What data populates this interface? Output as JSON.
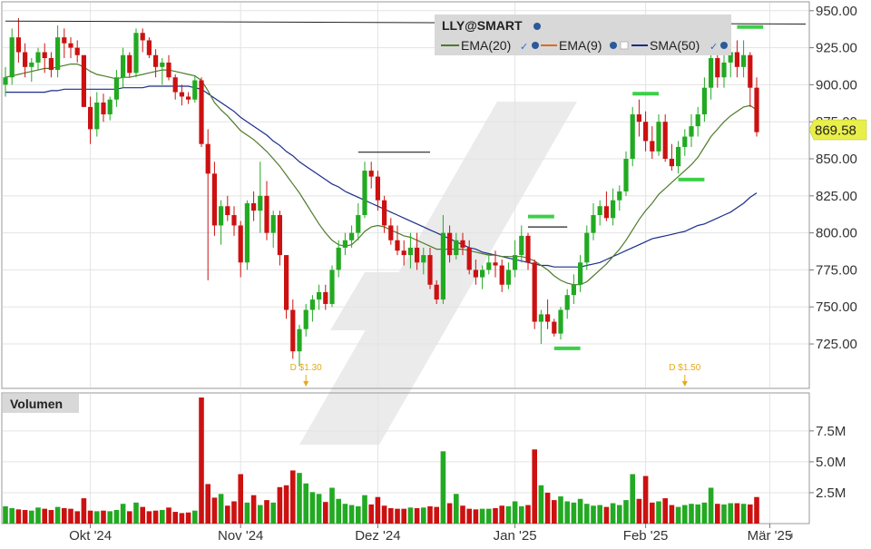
{
  "colors": {
    "up": "#22aa22",
    "down": "#cc1111",
    "ema20": "#4e7a2a",
    "ema9": "#e06a1e",
    "sma50": "#1c2c8a",
    "grid": "#e3e3e3",
    "axis_text": "#333333",
    "last_price_tag": "#e9ef4a",
    "marker_green": "#3ccf4a",
    "dividend": "#e6a817",
    "legend_bg": "#d8d8d8"
  },
  "legend": {
    "symbol": "LLY@SMART",
    "ema20_label": "EMA(20)",
    "ema9_label": "EMA(9)",
    "sma50_label": "SMA(50)"
  },
  "volume_panel": {
    "label": "Volumen"
  },
  "chart_data": {
    "type": "candlestick",
    "price_axis": {
      "ticks": [
        950,
        925,
        900,
        875,
        850,
        825,
        800,
        775,
        750,
        725
      ],
      "tick_labels": [
        "950.00",
        "925.00",
        "900.00",
        "875.00",
        "850.00",
        "825.00",
        "800.00",
        "775.00",
        "750.00",
        "725.00"
      ],
      "range": [
        695,
        956
      ]
    },
    "volume_axis": {
      "ticks": [
        2500000,
        5000000,
        7500000
      ],
      "tick_labels": [
        "2.5M",
        "5.0M",
        "7.5M"
      ],
      "range": [
        0,
        10500000
      ]
    },
    "x_axis": {
      "labels": [
        {
          "label": "Okt '24",
          "index": 13
        },
        {
          "label": "Nov '24",
          "index": 36
        },
        {
          "label": "Dez '24",
          "index": 57
        },
        {
          "label": "Jan '25",
          "index": 78
        },
        {
          "label": "Feb '25",
          "index": 98
        },
        {
          "label": "Mär '25",
          "index": 117
        }
      ]
    },
    "last_price": 869.58,
    "last_price_label": "869.58",
    "ohlc": [
      [
        900,
        912,
        892,
        905
      ],
      [
        905,
        938,
        900,
        932
      ],
      [
        932,
        945,
        915,
        922
      ],
      [
        922,
        928,
        905,
        912
      ],
      [
        912,
        918,
        902,
        915
      ],
      [
        915,
        925,
        910,
        922
      ],
      [
        922,
        928,
        908,
        918
      ],
      [
        918,
        922,
        905,
        910
      ],
      [
        910,
        940,
        905,
        932
      ],
      [
        932,
        938,
        918,
        928
      ],
      [
        928,
        932,
        918,
        925
      ],
      [
        925,
        930,
        915,
        920
      ],
      [
        920,
        920,
        885,
        885
      ],
      [
        885,
        892,
        860,
        870
      ],
      [
        870,
        895,
        865,
        888
      ],
      [
        888,
        894,
        875,
        880
      ],
      [
        880,
        892,
        876,
        890
      ],
      [
        890,
        910,
        885,
        905
      ],
      [
        905,
        925,
        898,
        920
      ],
      [
        920,
        922,
        905,
        908
      ],
      [
        908,
        938,
        905,
        935
      ],
      [
        935,
        938,
        922,
        930
      ],
      [
        930,
        932,
        918,
        920
      ],
      [
        920,
        924,
        905,
        912
      ],
      [
        912,
        918,
        900,
        915
      ],
      [
        915,
        920,
        903,
        905
      ],
      [
        905,
        907,
        890,
        895
      ],
      [
        895,
        900,
        886,
        892
      ],
      [
        892,
        895,
        887,
        890
      ],
      [
        890,
        906,
        888,
        903
      ],
      [
        903,
        905,
        858,
        860
      ],
      [
        860,
        870,
        768,
        840
      ],
      [
        840,
        848,
        798,
        805
      ],
      [
        805,
        822,
        792,
        818
      ],
      [
        818,
        825,
        808,
        812
      ],
      [
        812,
        818,
        798,
        805
      ],
      [
        805,
        808,
        770,
        780
      ],
      [
        780,
        822,
        775,
        820
      ],
      [
        820,
        828,
        808,
        815
      ],
      [
        815,
        848,
        800,
        825
      ],
      [
        825,
        835,
        795,
        800
      ],
      [
        800,
        815,
        790,
        812
      ],
      [
        812,
        815,
        778,
        785
      ],
      [
        785,
        785,
        742,
        748
      ],
      [
        748,
        755,
        715,
        720
      ],
      [
        720,
        738,
        710,
        735
      ],
      [
        735,
        752,
        730,
        748
      ],
      [
        748,
        758,
        740,
        755
      ],
      [
        755,
        765,
        748,
        760
      ],
      [
        760,
        765,
        748,
        752
      ],
      [
        752,
        778,
        750,
        775
      ],
      [
        775,
        795,
        770,
        790
      ],
      [
        790,
        800,
        785,
        795
      ],
      [
        795,
        805,
        790,
        800
      ],
      [
        800,
        820,
        795,
        812
      ],
      [
        812,
        848,
        810,
        842
      ],
      [
        842,
        848,
        830,
        838
      ],
      [
        838,
        842,
        815,
        822
      ],
      [
        822,
        825,
        800,
        805
      ],
      [
        805,
        810,
        792,
        795
      ],
      [
        795,
        805,
        785,
        788
      ],
      [
        788,
        795,
        778,
        785
      ],
      [
        785,
        800,
        776,
        790
      ],
      [
        790,
        800,
        775,
        780
      ],
      [
        780,
        790,
        772,
        785
      ],
      [
        785,
        790,
        762,
        765
      ],
      [
        765,
        768,
        752,
        755
      ],
      [
        755,
        812,
        752,
        800
      ],
      [
        800,
        805,
        780,
        785
      ],
      [
        785,
        800,
        782,
        795
      ],
      [
        795,
        800,
        785,
        790
      ],
      [
        790,
        795,
        772,
        775
      ],
      [
        775,
        782,
        765,
        770
      ],
      [
        770,
        778,
        762,
        775
      ],
      [
        775,
        785,
        772,
        780
      ],
      [
        780,
        788,
        770,
        778
      ],
      [
        778,
        782,
        760,
        765
      ],
      [
        765,
        780,
        762,
        775
      ],
      [
        775,
        795,
        770,
        785
      ],
      [
        785,
        805,
        780,
        798
      ],
      [
        798,
        800,
        775,
        780
      ],
      [
        780,
        782,
        735,
        740
      ],
      [
        740,
        748,
        725,
        745
      ],
      [
        745,
        755,
        735,
        740
      ],
      [
        740,
        742,
        730,
        732
      ],
      [
        732,
        750,
        728,
        748
      ],
      [
        748,
        762,
        742,
        758
      ],
      [
        758,
        772,
        752,
        765
      ],
      [
        765,
        785,
        760,
        780
      ],
      [
        780,
        805,
        775,
        800
      ],
      [
        800,
        820,
        795,
        812
      ],
      [
        812,
        822,
        805,
        818
      ],
      [
        818,
        828,
        808,
        810
      ],
      [
        810,
        830,
        805,
        822
      ],
      [
        822,
        832,
        815,
        828
      ],
      [
        828,
        855,
        825,
        850
      ],
      [
        850,
        885,
        845,
        880
      ],
      [
        880,
        890,
        865,
        875
      ],
      [
        875,
        882,
        855,
        862
      ],
      [
        862,
        872,
        850,
        855
      ],
      [
        855,
        880,
        852,
        875
      ],
      [
        875,
        880,
        848,
        850
      ],
      [
        850,
        860,
        842,
        845
      ],
      [
        845,
        862,
        840,
        858
      ],
      [
        858,
        870,
        852,
        865
      ],
      [
        865,
        880,
        858,
        872
      ],
      [
        872,
        885,
        865,
        880
      ],
      [
        880,
        905,
        875,
        898
      ],
      [
        898,
        925,
        890,
        918
      ],
      [
        918,
        930,
        898,
        905
      ],
      [
        905,
        925,
        898,
        915
      ],
      [
        915,
        932,
        905,
        922
      ],
      [
        922,
        930,
        905,
        912
      ],
      [
        912,
        930,
        905,
        920
      ],
      [
        920,
        922,
        885,
        898
      ],
      [
        898,
        905,
        865,
        868
      ]
    ],
    "volume": [
      1400000,
      1250000,
      1150000,
      1100000,
      1050000,
      1300000,
      1200000,
      1100000,
      1350000,
      1250000,
      1200000,
      1000000,
      2050000,
      1050000,
      1000000,
      1050000,
      1000000,
      1100000,
      1600000,
      1000000,
      1700000,
      1350000,
      1000000,
      1050000,
      1100000,
      1300000,
      950000,
      850000,
      900000,
      1050000,
      10200000,
      3200000,
      2100000,
      2400000,
      1450000,
      1800000,
      4000000,
      1700000,
      2300000,
      1500000,
      1900000,
      1700000,
      2950000,
      3100000,
      4300000,
      4100000,
      3250000,
      2550000,
      2400000,
      1750000,
      2900000,
      2000000,
      1600000,
      1500000,
      1400000,
      2300000,
      1550000,
      2150000,
      1450000,
      1250000,
      1200000,
      1200000,
      1300000,
      1250000,
      1300000,
      1400000,
      1350000,
      5850000,
      1650000,
      2400000,
      1450000,
      1200000,
      1150000,
      1200000,
      1200000,
      1250000,
      1450000,
      1400000,
      1800000,
      1400000,
      1500000,
      6000000,
      3100000,
      2500000,
      1900000,
      2200000,
      1800000,
      1700000,
      2000000,
      1600000,
      1450000,
      1500000,
      1350000,
      1650000,
      1500000,
      1900000,
      4000000,
      2000000,
      3850000,
      1700000,
      1800000,
      2050000,
      1500000,
      1350000,
      1500000,
      1600000,
      1550000,
      1700000,
      2900000,
      1600000,
      1550000,
      1650000,
      1650000,
      1600000,
      1550000,
      2150000
    ],
    "ema20": [
      905,
      906,
      907,
      908,
      909,
      910,
      911,
      911,
      912,
      913,
      914,
      914,
      912,
      909,
      907,
      906,
      905,
      904,
      905,
      905,
      906,
      907,
      908,
      909,
      910,
      910,
      909,
      908,
      907,
      906,
      903,
      896,
      888,
      883,
      879,
      874,
      869,
      866,
      863,
      859,
      855,
      850,
      845,
      839,
      833,
      827,
      820,
      813,
      806,
      800,
      795,
      792,
      791,
      792,
      796,
      801,
      804,
      805,
      804,
      802,
      800,
      798,
      797,
      795,
      793,
      791,
      789,
      789,
      789,
      789,
      789,
      788,
      787,
      786,
      785,
      785,
      784,
      784,
      784,
      784,
      783,
      781,
      778,
      775,
      771,
      768,
      766,
      765,
      765,
      767,
      771,
      775,
      779,
      784,
      789,
      795,
      802,
      809,
      815,
      820,
      826,
      830,
      834,
      838,
      842,
      846,
      851,
      858,
      865,
      870,
      875,
      879,
      882,
      885,
      886,
      883
    ],
    "sma50": [
      895,
      895,
      895,
      895,
      895,
      895,
      895,
      896,
      896,
      897,
      897,
      897,
      897,
      897,
      897,
      897,
      897,
      897,
      898,
      898,
      898,
      898,
      899,
      899,
      899,
      899,
      899,
      899,
      899,
      898,
      897,
      894,
      891,
      888,
      885,
      882,
      878,
      875,
      872,
      869,
      866,
      862,
      859,
      855,
      852,
      848,
      845,
      842,
      839,
      836,
      833,
      831,
      828,
      826,
      824,
      822,
      820,
      818,
      816,
      814,
      812,
      810,
      808,
      806,
      804,
      802,
      800,
      798,
      796,
      794,
      792,
      790,
      789,
      787,
      786,
      785,
      784,
      783,
      782,
      781,
      780,
      779,
      778,
      778,
      777,
      777,
      777,
      777,
      777,
      778,
      779,
      780,
      782,
      784,
      786,
      788,
      790,
      792,
      794,
      796,
      797,
      798,
      799,
      800,
      801,
      803,
      805,
      806,
      808,
      810,
      812,
      814,
      817,
      820,
      824,
      827
    ],
    "annotations": {
      "resistance_line": [
        {
          "index": 0,
          "price": 943
        },
        {
          "index": 121,
          "price": 941
        }
      ],
      "black_levels": [
        {
          "start": 54,
          "end": 65,
          "price": 854.5
        },
        {
          "start": 80,
          "end": 86,
          "price": 804
        }
      ],
      "green_levels": [
        {
          "start": 80,
          "end": 84,
          "price": 811
        },
        {
          "start": 84,
          "end": 88,
          "price": 722
        },
        {
          "start": 96,
          "end": 100,
          "price": 894
        },
        {
          "start": 103,
          "end": 107,
          "price": 836
        },
        {
          "start": 112,
          "end": 116,
          "price": 939
        }
      ],
      "dividends": [
        {
          "index": 46,
          "label": "D $1.30"
        },
        {
          "index": 104,
          "label": "D $1.50"
        }
      ]
    }
  }
}
